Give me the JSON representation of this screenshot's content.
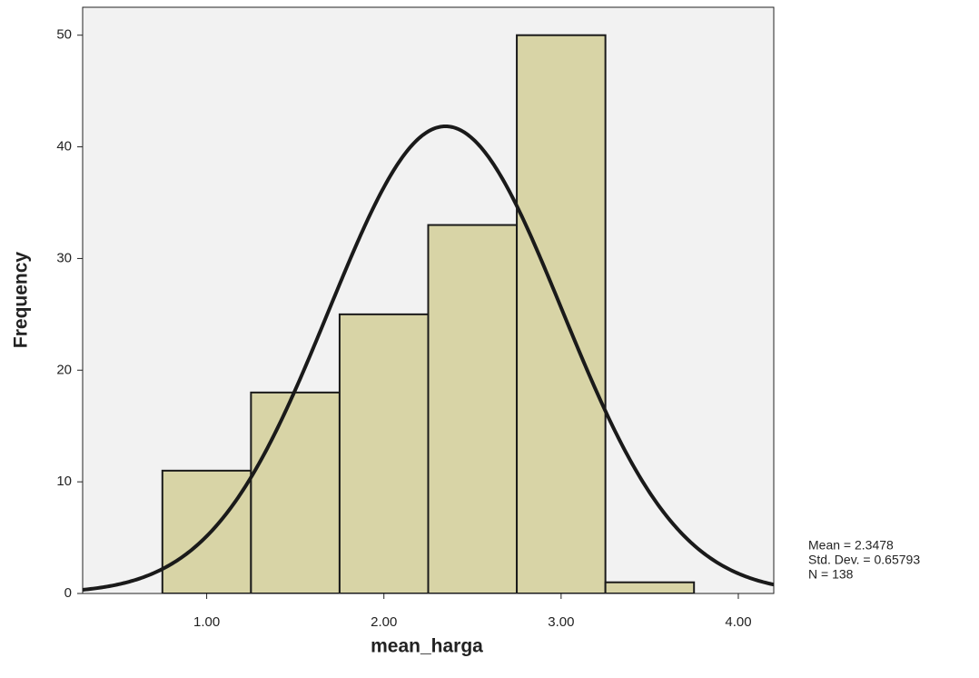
{
  "chart_data": {
    "type": "histogram",
    "x_label": "mean_harga",
    "y_label": "Frequency",
    "bins": [
      0.75,
      1.25,
      1.75,
      2.25,
      2.75,
      3.25,
      3.75
    ],
    "values": [
      11,
      18,
      25,
      33,
      50,
      1
    ],
    "color": "#d8d4a6",
    "edge_color": "#1a1a1a",
    "background": "#f2f2f2",
    "xlim": [
      0.3,
      4.2
    ],
    "ylim": [
      0,
      52.5
    ],
    "xticks": [
      {
        "value": 1,
        "label": "1.00"
      },
      {
        "value": 2,
        "label": "2.00"
      },
      {
        "value": 3,
        "label": "3.00"
      },
      {
        "value": 4,
        "label": "4.00"
      }
    ],
    "yticks": [
      0,
      10,
      20,
      30,
      40,
      50
    ],
    "normal_curve": {
      "mean": 2.3478,
      "sd": 0.65793,
      "n": 138,
      "color": "#1a1a1a"
    },
    "annotations": [
      "Mean = 2.3478",
      "Std. Dev. = 0.65793",
      "N = 138"
    ]
  }
}
